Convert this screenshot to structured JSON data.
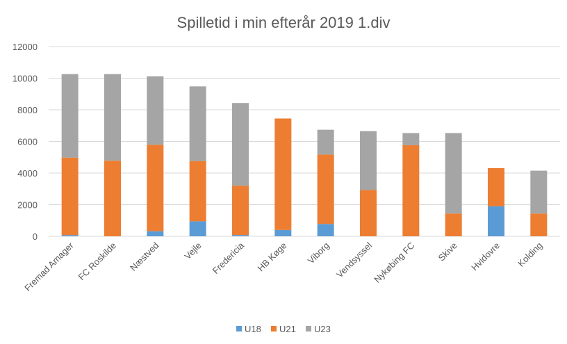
{
  "chart_data": {
    "type": "bar",
    "stacked": true,
    "title": "Spilletid i min efterår 2019 1.div",
    "xlabel": "",
    "ylabel": "",
    "ylim": [
      0,
      12000
    ],
    "yticks": [
      0,
      2000,
      4000,
      6000,
      8000,
      10000,
      12000
    ],
    "grid": true,
    "legend_position": "bottom",
    "categories": [
      "Fremad Amager",
      "FC Roskilde",
      "Næstved",
      "Vejle",
      "Fredericia",
      "HB Køge",
      "Viborg",
      "Vendsyssel",
      "Nykøbing FC",
      "Skive",
      "Hvidovre",
      "Kolding"
    ],
    "series": [
      {
        "name": "U18",
        "color": "#5b9bd5",
        "values": [
          80,
          0,
          320,
          950,
          80,
          400,
          780,
          0,
          0,
          0,
          1900,
          0
        ]
      },
      {
        "name": "U21",
        "color": "#ed7d31",
        "values": [
          4900,
          4780,
          5470,
          3800,
          3120,
          7050,
          4390,
          2930,
          5760,
          1440,
          2410,
          1440
        ]
      },
      {
        "name": "U23",
        "color": "#a5a5a5",
        "values": [
          5280,
          5480,
          4330,
          4730,
          5230,
          0,
          1570,
          3720,
          770,
          5090,
          0,
          2710
        ]
      }
    ]
  }
}
